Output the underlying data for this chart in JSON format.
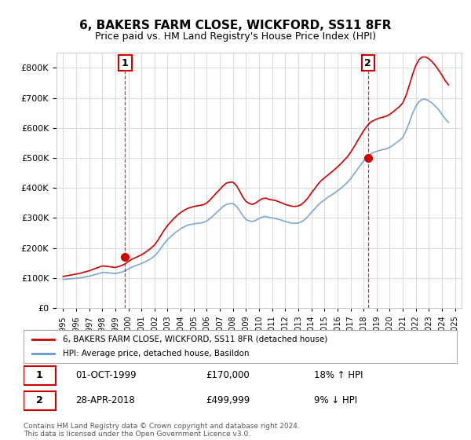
{
  "title": "6, BAKERS FARM CLOSE, WICKFORD, SS11 8FR",
  "subtitle": "Price paid vs. HM Land Registry's House Price Index (HPI)",
  "legend_label_red": "6, BAKERS FARM CLOSE, WICKFORD, SS11 8FR (detached house)",
  "legend_label_blue": "HPI: Average price, detached house, Basildon",
  "annotation1_label": "1",
  "annotation1_date": "01-OCT-1999",
  "annotation1_price": "£170,000",
  "annotation1_hpi": "18% ↑ HPI",
  "annotation2_label": "2",
  "annotation2_date": "28-APR-2018",
  "annotation2_price": "£499,999",
  "annotation2_hpi": "9% ↓ HPI",
  "footnote": "Contains HM Land Registry data © Crown copyright and database right 2024.\nThis data is licensed under the Open Government Licence v3.0.",
  "red_color": "#cc0000",
  "blue_color": "#6699cc",
  "annotation_color": "#cc0000",
  "background_color": "#ffffff",
  "grid_color": "#dddddd",
  "ylim": [
    0,
    850000
  ],
  "yticks": [
    0,
    100000,
    200000,
    300000,
    400000,
    500000,
    600000,
    700000,
    800000
  ],
  "xlim_start": 1994.5,
  "xlim_end": 2025.5,
  "sale1_x": 1999.75,
  "sale1_y": 170000,
  "sale2_x": 2018.33,
  "sale2_y": 499999,
  "hpi_years": [
    1995,
    1995.25,
    1995.5,
    1995.75,
    1996,
    1996.25,
    1996.5,
    1996.75,
    1997,
    1997.25,
    1997.5,
    1997.75,
    1998,
    1998.25,
    1998.5,
    1998.75,
    1999,
    1999.25,
    1999.5,
    1999.75,
    2000,
    2000.25,
    2000.5,
    2000.75,
    2001,
    2001.25,
    2001.5,
    2001.75,
    2002,
    2002.25,
    2002.5,
    2002.75,
    2003,
    2003.25,
    2003.5,
    2003.75,
    2004,
    2004.25,
    2004.5,
    2004.75,
    2005,
    2005.25,
    2005.5,
    2005.75,
    2006,
    2006.25,
    2006.5,
    2006.75,
    2007,
    2007.25,
    2007.5,
    2007.75,
    2008,
    2008.25,
    2008.5,
    2008.75,
    2009,
    2009.25,
    2009.5,
    2009.75,
    2010,
    2010.25,
    2010.5,
    2010.75,
    2011,
    2011.25,
    2011.5,
    2011.75,
    2012,
    2012.25,
    2012.5,
    2012.75,
    2013,
    2013.25,
    2013.5,
    2013.75,
    2014,
    2014.25,
    2014.5,
    2014.75,
    2015,
    2015.25,
    2015.5,
    2015.75,
    2016,
    2016.25,
    2016.5,
    2016.75,
    2017,
    2017.25,
    2017.5,
    2017.75,
    2018,
    2018.25,
    2018.5,
    2018.75,
    2019,
    2019.25,
    2019.5,
    2019.75,
    2020,
    2020.25,
    2020.5,
    2020.75,
    2021,
    2021.25,
    2021.5,
    2021.75,
    2022,
    2022.25,
    2022.5,
    2022.75,
    2023,
    2023.25,
    2023.5,
    2023.75,
    2024,
    2024.25,
    2024.5
  ],
  "hpi_values": [
    95000,
    96000,
    97000,
    98000,
    99000,
    100000,
    102000,
    104000,
    106000,
    109000,
    112000,
    115000,
    118000,
    118000,
    117000,
    116000,
    115000,
    117000,
    120000,
    124000,
    130000,
    136000,
    140000,
    144000,
    148000,
    153000,
    159000,
    165000,
    173000,
    185000,
    200000,
    215000,
    228000,
    238000,
    248000,
    256000,
    264000,
    270000,
    275000,
    278000,
    280000,
    282000,
    283000,
    285000,
    290000,
    298000,
    308000,
    318000,
    328000,
    338000,
    345000,
    348000,
    348000,
    340000,
    325000,
    308000,
    295000,
    290000,
    288000,
    292000,
    298000,
    303000,
    305000,
    302000,
    300000,
    298000,
    295000,
    292000,
    288000,
    285000,
    283000,
    282000,
    283000,
    287000,
    295000,
    305000,
    318000,
    330000,
    342000,
    352000,
    360000,
    368000,
    375000,
    382000,
    390000,
    398000,
    408000,
    418000,
    430000,
    445000,
    460000,
    475000,
    490000,
    502000,
    512000,
    518000,
    522000,
    525000,
    528000,
    530000,
    535000,
    542000,
    550000,
    558000,
    568000,
    590000,
    618000,
    648000,
    672000,
    688000,
    695000,
    695000,
    690000,
    682000,
    672000,
    660000,
    645000,
    630000,
    618000
  ],
  "red_years": [
    1995,
    1995.25,
    1995.5,
    1995.75,
    1996,
    1996.25,
    1996.5,
    1996.75,
    1997,
    1997.25,
    1997.5,
    1997.75,
    1998,
    1998.25,
    1998.5,
    1998.75,
    1999,
    1999.25,
    1999.5,
    1999.75,
    2000,
    2000.25,
    2000.5,
    2000.75,
    2001,
    2001.25,
    2001.5,
    2001.75,
    2002,
    2002.25,
    2002.5,
    2002.75,
    2003,
    2003.25,
    2003.5,
    2003.75,
    2004,
    2004.25,
    2004.5,
    2004.75,
    2005,
    2005.25,
    2005.5,
    2005.75,
    2006,
    2006.25,
    2006.5,
    2006.75,
    2007,
    2007.25,
    2007.5,
    2007.75,
    2008,
    2008.25,
    2008.5,
    2008.75,
    2009,
    2009.25,
    2009.5,
    2009.75,
    2010,
    2010.25,
    2010.5,
    2010.75,
    2011,
    2011.25,
    2011.5,
    2011.75,
    2012,
    2012.25,
    2012.5,
    2012.75,
    2013,
    2013.25,
    2013.5,
    2013.75,
    2014,
    2014.25,
    2014.5,
    2014.75,
    2015,
    2015.25,
    2015.5,
    2015.75,
    2016,
    2016.25,
    2016.5,
    2016.75,
    2017,
    2017.25,
    2017.5,
    2017.75,
    2018,
    2018.25,
    2018.5,
    2018.75,
    2019,
    2019.25,
    2019.5,
    2019.75,
    2020,
    2020.25,
    2020.5,
    2020.75,
    2021,
    2021.25,
    2021.5,
    2021.75,
    2022,
    2022.25,
    2022.5,
    2022.75,
    2023,
    2023.25,
    2023.5,
    2023.75,
    2024,
    2024.25,
    2024.5
  ],
  "red_values": [
    105000,
    107000,
    109000,
    111000,
    113000,
    115000,
    118000,
    121000,
    124000,
    128000,
    132000,
    136000,
    140000,
    139000,
    138000,
    136000,
    135000,
    138000,
    142000,
    147000,
    155000,
    162000,
    167000,
    172000,
    177000,
    184000,
    192000,
    200000,
    210000,
    225000,
    243000,
    260000,
    275000,
    287000,
    299000,
    309000,
    318000,
    325000,
    331000,
    335000,
    338000,
    340000,
    342000,
    344000,
    350000,
    360000,
    372000,
    384000,
    395000,
    407000,
    416000,
    419000,
    419000,
    409000,
    391000,
    370000,
    355000,
    348000,
    345000,
    350000,
    358000,
    364000,
    366000,
    362000,
    360000,
    358000,
    354000,
    350000,
    345000,
    342000,
    339000,
    338000,
    340000,
    345000,
    355000,
    367000,
    383000,
    397000,
    412000,
    424000,
    433000,
    442000,
    451000,
    460000,
    470000,
    480000,
    492000,
    503000,
    518000,
    535000,
    554000,
    572000,
    590000,
    605000,
    618000,
    624000,
    629000,
    633000,
    636000,
    639000,
    645000,
    653000,
    662000,
    671000,
    683000,
    708000,
    742000,
    778000,
    808000,
    828000,
    836000,
    836000,
    830000,
    820000,
    807000,
    792000,
    775000,
    757000,
    743000
  ]
}
